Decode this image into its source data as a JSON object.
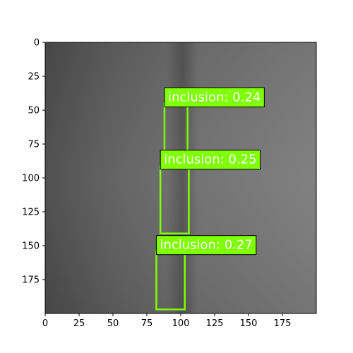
{
  "image": {
    "extent_x": [
      0,
      200
    ],
    "extent_y": [
      0,
      200
    ],
    "texture": "grayscale steel surface, darker on left, lighter on right, with a faint vertical dark streak near x≈100"
  },
  "axes": {
    "x_ticks": [
      "0",
      "25",
      "50",
      "75",
      "100",
      "125",
      "150",
      "175"
    ],
    "y_ticks": [
      "0",
      "25",
      "50",
      "75",
      "100",
      "125",
      "150",
      "175"
    ]
  },
  "detections": [
    {
      "label": "inclusion: 0.24",
      "class": "inclusion",
      "score": 0.24,
      "box_data": [
        88,
        45,
        105,
        81
      ]
    },
    {
      "label": "inclusion: 0.25",
      "class": "inclusion",
      "score": 0.25,
      "box_data": [
        85,
        91,
        106,
        141
      ]
    },
    {
      "label": "inclusion: 0.27",
      "class": "inclusion",
      "score": 0.27,
      "box_data": [
        82,
        154,
        103,
        197
      ]
    }
  ],
  "colors": {
    "box_stroke": "#7fff00",
    "label_bg": "#7fff00",
    "label_text": "#ffffff"
  }
}
